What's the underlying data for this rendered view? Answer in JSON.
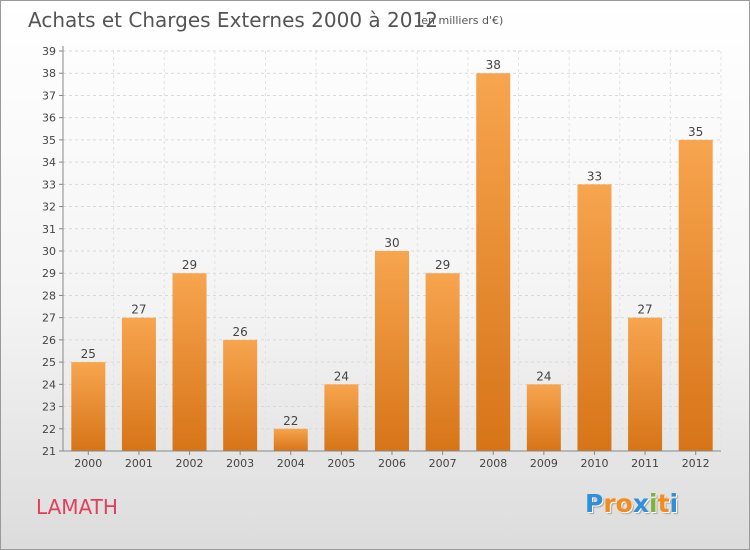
{
  "header": {
    "title": "Achats et Charges Externes 2000 à 2012",
    "subtitle": "(en milliers d'€)"
  },
  "footer": {
    "commune": "LAMATH",
    "logo_text": "Proxiti"
  },
  "colors": {
    "bar_light": "#f7a54f",
    "bar_dark": "#d77418",
    "commune": "#e0405a",
    "logo_letters": [
      "#2f8fd8",
      "#f28c1e",
      "#f28c1e",
      "#2f8fd8",
      "#7ab43a",
      "#f28c1e",
      "#2f8fd8"
    ]
  },
  "chart_data": {
    "type": "bar",
    "title": "Achats et Charges Externes 2000 à 2012",
    "subtitle": "(en milliers d'€)",
    "categories": [
      "2000",
      "2001",
      "2002",
      "2003",
      "2004",
      "2005",
      "2006",
      "2007",
      "2008",
      "2009",
      "2010",
      "2011",
      "2012"
    ],
    "values": [
      25,
      27,
      29,
      26,
      22,
      24,
      30,
      29,
      38,
      24,
      33,
      27,
      35
    ],
    "ylim": [
      21,
      39
    ],
    "yticks": [
      21,
      22,
      23,
      24,
      25,
      26,
      27,
      28,
      29,
      30,
      31,
      32,
      33,
      34,
      35,
      36,
      37,
      38,
      39
    ],
    "grid": true,
    "data_labels": true
  }
}
